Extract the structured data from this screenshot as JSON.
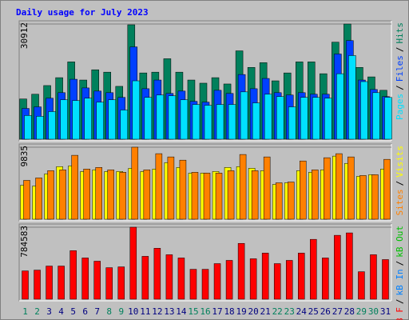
{
  "legend_separator": "/",
  "chart_data": [
    {
      "type": "bar",
      "title": "Daily usage for July 2023",
      "ylim": [
        0,
        30912
      ],
      "yticks": [
        30912
      ],
      "series": [
        {
          "name": "Hits",
          "color": "#00805c",
          "values": [
            10797,
            12067,
            14396,
            16513,
            20748,
            15878,
            18630,
            17995,
            14184,
            30700,
            17784,
            17995,
            21595,
            17995,
            15878,
            15032,
            16513,
            14820,
            23712,
            19266,
            20537,
            15667,
            17784,
            20748,
            20748,
            17573,
            26042,
            30912,
            19266,
            16726,
            13127
          ]
        },
        {
          "name": "Files",
          "color": "#0040ff",
          "values": [
            8256,
            8680,
            11008,
            12490,
            16089,
            13761,
            12914,
            12490,
            11220,
            24769,
            13549,
            15878,
            12279,
            12914,
            10162,
            9950,
            13125,
            12279,
            17359,
            13549,
            16301,
            12490,
            11855,
            12490,
            12067,
            12067,
            22864,
            26463,
            15878,
            13337,
            11432
          ]
        },
        {
          "name": "Pages",
          "color": "#00e0ff",
          "values": [
            6351,
            6139,
            7410,
            10585,
            10373,
            11008,
            9950,
            10585,
            7833,
            15666,
            11220,
            11855,
            11644,
            10585,
            9315,
            9103,
            9315,
            9315,
            12702,
            9738,
            12067,
            11432,
            8680,
            11220,
            11220,
            11008,
            17571,
            22440,
            15454,
            12490,
            11220
          ]
        }
      ]
    },
    {
      "type": "bar",
      "ylim": [
        0,
        9835
      ],
      "yticks": [
        9835
      ],
      "series": [
        {
          "name": "Visits",
          "color": "#ffff00",
          "values": [
            4641,
            4531,
            6188,
            7183,
            7293,
            6520,
            6741,
            6520,
            6520,
            6962,
            6520,
            6851,
            7735,
            7072,
            6299,
            6299,
            6520,
            7072,
            7183,
            6962,
            6630,
            4752,
            4973,
            6630,
            6409,
            6741,
            8619,
            7625,
            5857,
            6078,
            6851
          ]
        },
        {
          "name": "Sites",
          "color": "#ff8000",
          "values": [
            5304,
            5636,
            6630,
            6741,
            8730,
            6851,
            7072,
            6741,
            6409,
            9835,
            6741,
            8951,
            8509,
            8067,
            6409,
            6299,
            6299,
            6630,
            8840,
            6630,
            8509,
            4973,
            5083,
            7956,
            6741,
            8398,
            8951,
            8509,
            5967,
            6078,
            8177
          ]
        }
      ]
    },
    {
      "type": "bar",
      "ylim": [
        0,
        784583
      ],
      "yticks": [
        784583
      ],
      "categories": [
        "1",
        "2",
        "3",
        "4",
        "5",
        "6",
        "7",
        "8",
        "9",
        "10",
        "11",
        "12",
        "13",
        "14",
        "15",
        "16",
        "17",
        "18",
        "19",
        "20",
        "21",
        "22",
        "23",
        "24",
        "25",
        "26",
        "27",
        "28",
        "29",
        "30",
        "31"
      ],
      "category_colors": [
        "#00805c",
        "#00805c",
        "#000080",
        "#000080",
        "#000080",
        "#000080",
        "#000080",
        "#00805c",
        "#00805c",
        "#000080",
        "#000080",
        "#000080",
        "#000080",
        "#000080",
        "#00805c",
        "#00805c",
        "#000080",
        "#000080",
        "#000080",
        "#000080",
        "#000080",
        "#00805c",
        "#00805c",
        "#000080",
        "#000080",
        "#000080",
        "#000080",
        "#000080",
        "#00805c",
        "#00805c",
        "#000080"
      ],
      "series": [
        {
          "name": "kB Out",
          "color": "#00c000",
          "values": [
            null,
            null,
            null,
            null,
            null,
            null,
            null,
            null,
            null,
            null,
            null,
            null,
            null,
            null,
            null,
            null,
            null,
            null,
            null,
            null,
            null,
            null,
            null,
            null,
            null,
            null,
            null,
            null,
            null,
            null,
            null
          ]
        },
        {
          "name": "kB In",
          "color": "#0080ff",
          "values": [
            null,
            null,
            null,
            null,
            null,
            null,
            null,
            null,
            null,
            null,
            null,
            null,
            null,
            null,
            null,
            null,
            null,
            null,
            null,
            null,
            null,
            null,
            null,
            null,
            null,
            null,
            null,
            null,
            null,
            null,
            null
          ]
        },
        {
          "name": "kB F",
          "color": "#ff0000",
          "values": [
            308525,
            317340,
            361415,
            361415,
            528900,
            449565,
            414305,
            343785,
            352600,
            784583,
            467195,
            555345,
            484825,
            449565,
            326155,
            326155,
            387860,
            423120,
            608235,
            440750,
            502455,
            387860,
            423120,
            502455,
            652310,
            449565,
            696385,
            722830,
            299710,
            484825,
            431935
          ]
        }
      ]
    }
  ]
}
